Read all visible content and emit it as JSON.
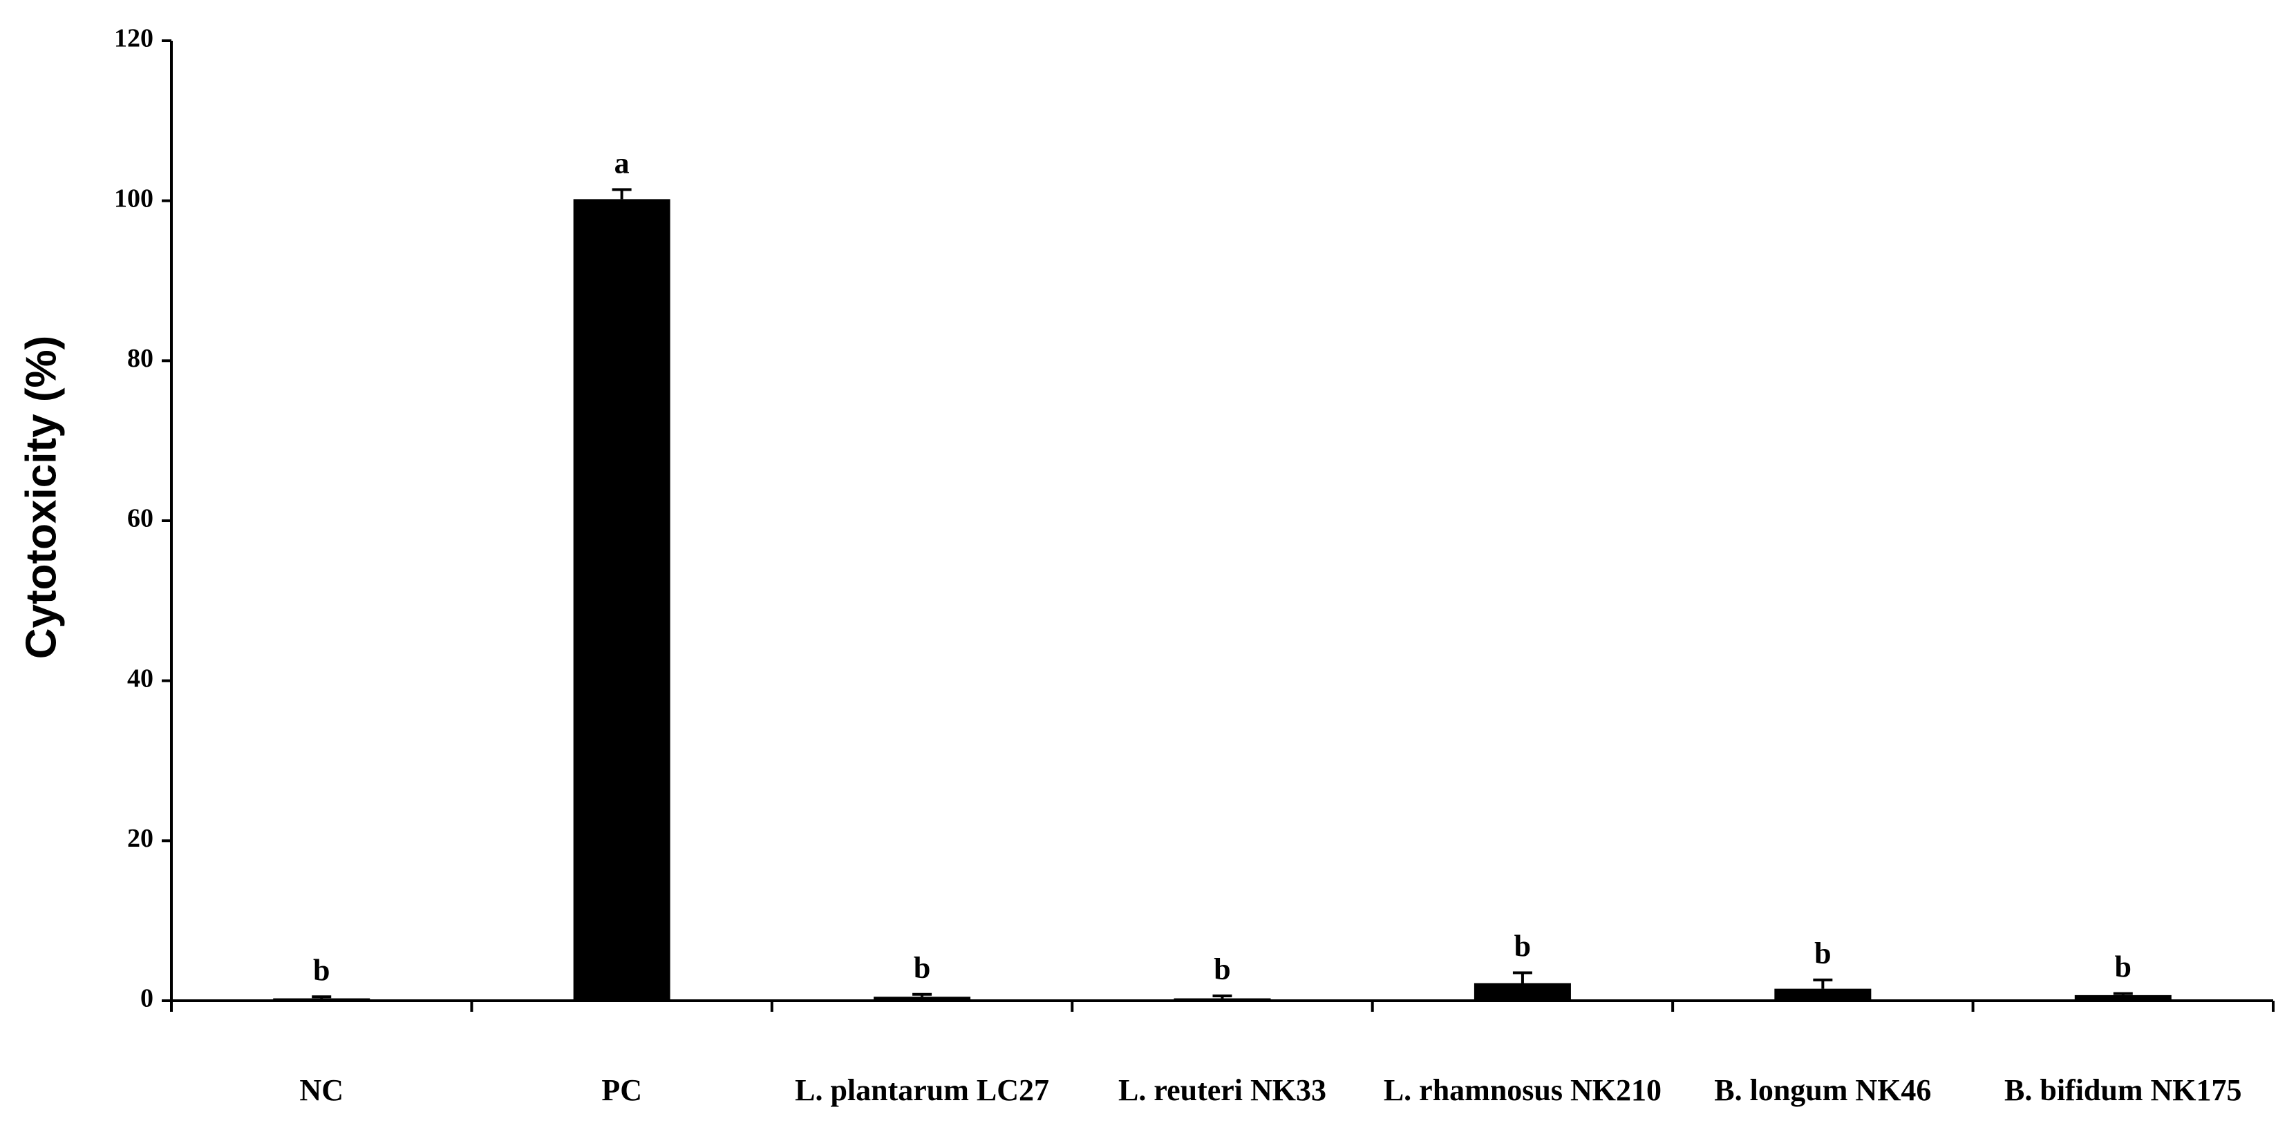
{
  "chart_data": {
    "type": "bar",
    "y_label": "Cytotoxicity (%)",
    "categories": [
      "NC",
      "PC",
      "L. plantarum LC27",
      "L. reuteri NK33",
      "L. rhamnosus NK210",
      "B. longum NK46",
      "B. bifidum NK175"
    ],
    "values": [
      0.3,
      100.2,
      0.5,
      0.3,
      2.2,
      1.5,
      0.7
    ],
    "errors": [
      0.2,
      1.2,
      0.3,
      0.3,
      1.3,
      1.1,
      0.2
    ],
    "annotations": [
      "b",
      "a",
      "b",
      "b",
      "b",
      "b",
      "b"
    ],
    "color": "#000000",
    "ylim": [
      0,
      120
    ],
    "yticks": [
      0,
      20,
      40,
      60,
      80,
      100,
      120
    ],
    "grid": false
  }
}
